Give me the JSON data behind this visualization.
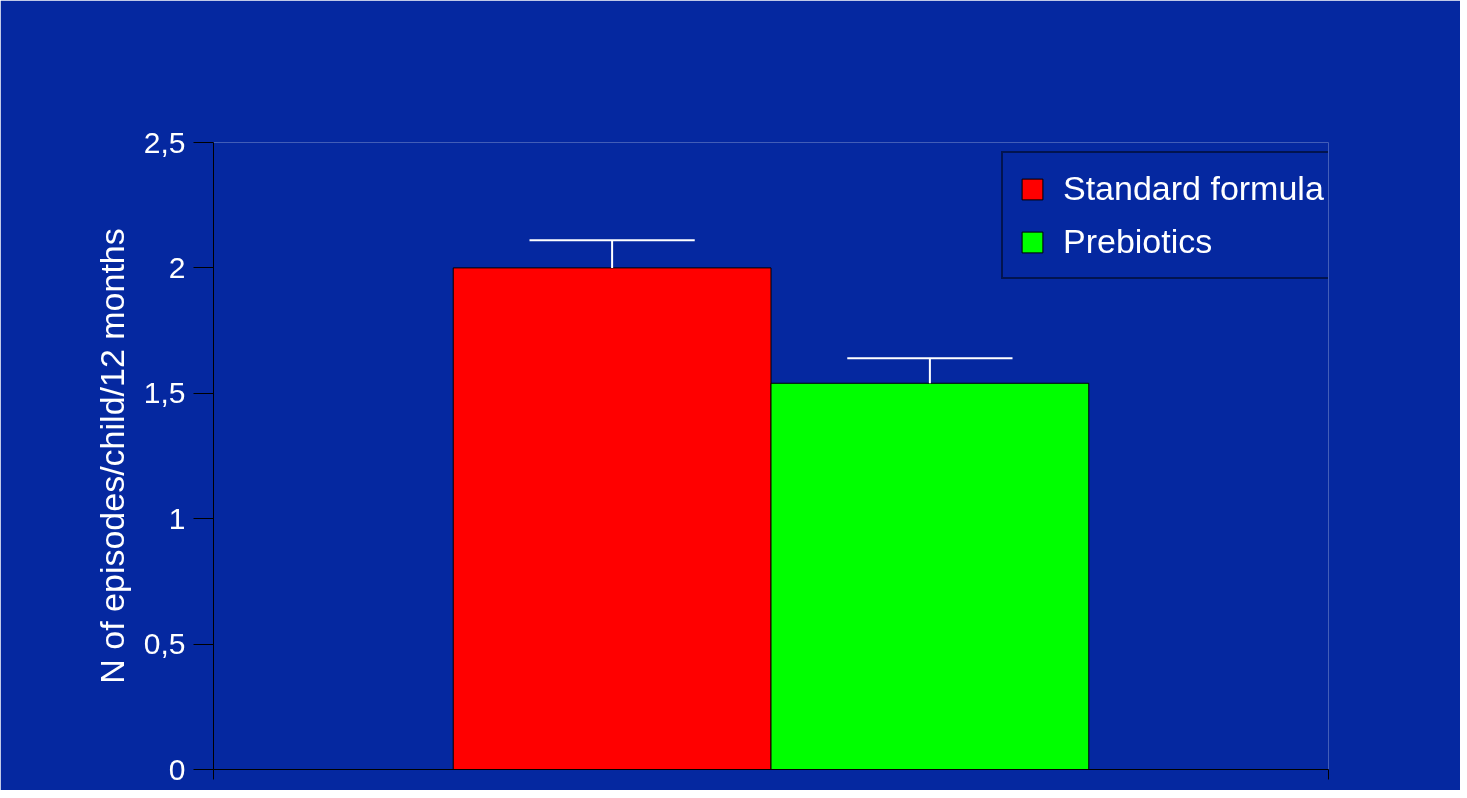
{
  "chart_data": {
    "type": "bar",
    "ylabel": "N of episodes/child/12 months",
    "categories": [
      null
    ],
    "series": [
      {
        "name": "Standard formula",
        "color": "#ff0000",
        "values": [
          2.0
        ],
        "errors": [
          [
            2.0,
            2.11
          ]
        ]
      },
      {
        "name": "Prebiotics",
        "color": "#00ff00",
        "values": [
          1.54
        ],
        "errors": [
          [
            1.54,
            1.64
          ]
        ]
      }
    ],
    "ylim": [
      0,
      2.5
    ],
    "yticks": [
      0,
      {
        "value": 0.5,
        "label": "0,5"
      },
      1,
      {
        "value": 1.5,
        "label": "1,5"
      },
      2,
      {
        "value": 2.5,
        "label": "2,5"
      }
    ],
    "tick_labels": "y",
    "grid": false,
    "legend": "top right"
  }
}
